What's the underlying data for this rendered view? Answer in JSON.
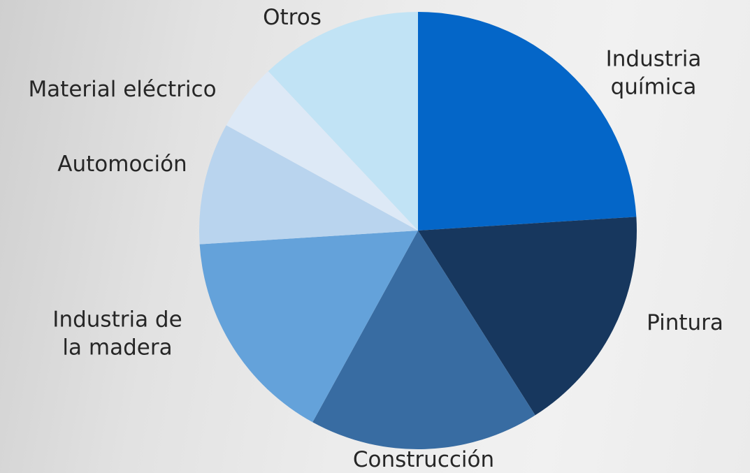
{
  "chart_data": {
    "type": "pie",
    "categories": [
      "Industria química",
      "Pintura",
      "Construcción",
      "Industria de la madera",
      "Automoción",
      "Material eléctrico",
      "Otros"
    ],
    "values": [
      24,
      17,
      17,
      16,
      9,
      5,
      12
    ],
    "colors": [
      "#0466c8",
      "#17375e",
      "#386ca2",
      "#64a2da",
      "#b9d4ee",
      "#dde9f6",
      "#c1e3f5"
    ]
  }
}
